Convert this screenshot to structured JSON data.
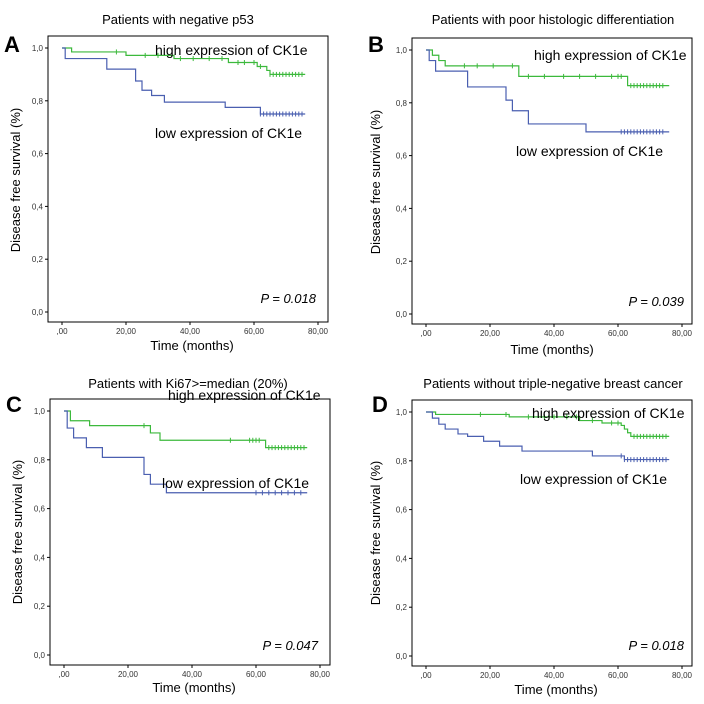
{
  "figure": {
    "panels": [
      "A",
      "B",
      "C",
      "D"
    ]
  },
  "chart_data": [
    {
      "type": "line",
      "panel_letter": "A",
      "title": "Patients with negative p53",
      "xlabel": "Time (months)",
      "ylabel": "Disease free survival (%)",
      "xlim": [
        0,
        80
      ],
      "ylim": [
        0,
        1
      ],
      "xticks": [
        ",00",
        "20,00",
        "40,00",
        "60,00",
        "80,00"
      ],
      "yticks": [
        "0,0",
        "0,2",
        "0,4",
        "0,6",
        "0,8",
        "1,0"
      ],
      "p_value": "P = 0.018",
      "series": [
        {
          "name": "high expression of CK1e",
          "color": "#3cb93c",
          "x": [
            0,
            3,
            15,
            20,
            25,
            35,
            48,
            52,
            58,
            61,
            63,
            64,
            65,
            76
          ],
          "y": [
            1.0,
            0.985,
            0.985,
            0.972,
            0.972,
            0.96,
            0.96,
            0.945,
            0.945,
            0.93,
            0.93,
            0.915,
            0.9,
            0.9
          ],
          "censor_x": [
            17,
            26,
            30,
            37,
            41,
            46,
            50,
            55,
            57,
            60,
            62,
            65,
            66,
            67,
            68,
            69,
            70,
            71,
            72,
            73,
            74,
            75
          ]
        },
        {
          "name": "low expression of CK1e",
          "color": "#4a5fb0",
          "x": [
            0,
            1,
            12,
            14,
            21,
            23,
            25,
            28,
            32,
            37,
            51,
            62,
            76
          ],
          "y": [
            1.0,
            0.96,
            0.96,
            0.92,
            0.92,
            0.875,
            0.84,
            0.82,
            0.795,
            0.795,
            0.775,
            0.75,
            0.75
          ],
          "censor_x": [
            62,
            63,
            64,
            65,
            66,
            67,
            68,
            69,
            70,
            71,
            72,
            73,
            74,
            75
          ]
        }
      ]
    },
    {
      "type": "line",
      "panel_letter": "B",
      "title": "Patients with poor histologic differentiation",
      "xlabel": "Time (months)",
      "ylabel": "Disease free survival (%)",
      "xlim": [
        0,
        80
      ],
      "ylim": [
        0,
        1
      ],
      "xticks": [
        ",00",
        "20,00",
        "40,00",
        "60,00",
        "80,00"
      ],
      "yticks": [
        "0,0",
        "0,2",
        "0,4",
        "0,6",
        "0,8",
        "1,0"
      ],
      "p_value": "P = 0.039",
      "series": [
        {
          "name": "high expression of CK1e",
          "color": "#3cb93c",
          "x": [
            0,
            2,
            4,
            6,
            27,
            29,
            62,
            63,
            76
          ],
          "y": [
            1.0,
            0.98,
            0.96,
            0.94,
            0.94,
            0.9,
            0.9,
            0.865,
            0.865
          ],
          "censor_x": [
            12,
            16,
            21,
            27,
            32,
            37,
            43,
            48,
            53,
            58,
            60,
            61,
            64,
            65,
            66,
            67,
            68,
            69,
            70,
            71,
            72,
            73,
            74
          ]
        },
        {
          "name": "low expression of CK1e",
          "color": "#4a5fb0",
          "x": [
            0,
            1,
            3,
            10,
            13,
            20,
            25,
            27,
            32,
            50,
            76
          ],
          "y": [
            1.0,
            0.96,
            0.92,
            0.92,
            0.86,
            0.86,
            0.81,
            0.77,
            0.72,
            0.69,
            0.69
          ],
          "censor_x": [
            61,
            62,
            63,
            64,
            65,
            66,
            67,
            68,
            69,
            70,
            71,
            72,
            73,
            74
          ]
        }
      ]
    },
    {
      "type": "line",
      "panel_letter": "C",
      "title": "Patients with Ki67>=median (20%)",
      "xlabel": "Time (months)",
      "ylabel": "Disease free survival (%)",
      "xlim": [
        0,
        80
      ],
      "ylim": [
        0,
        1
      ],
      "xticks": [
        ",00",
        "20,00",
        "40,00",
        "60,00",
        "80,00"
      ],
      "yticks": [
        "0,0",
        "0,2",
        "0,4",
        "0,6",
        "0,8",
        "1,0"
      ],
      "p_value": "P = 0.047",
      "series": [
        {
          "name": "high expression of CK1e",
          "color": "#3cb93c",
          "x": [
            0,
            2,
            8,
            22,
            27,
            30,
            62,
            63,
            76
          ],
          "y": [
            1.0,
            0.96,
            0.94,
            0.94,
            0.91,
            0.88,
            0.88,
            0.85,
            0.85
          ],
          "censor_x": [
            25,
            52,
            58,
            59,
            60,
            61,
            64,
            65,
            66,
            67,
            68,
            69,
            70,
            71,
            72,
            73,
            74,
            75
          ]
        },
        {
          "name": "low expression of CK1e",
          "color": "#4a5fb0",
          "x": [
            0,
            1,
            3,
            7,
            12,
            22,
            25,
            27,
            32,
            76
          ],
          "y": [
            1.0,
            0.93,
            0.89,
            0.85,
            0.81,
            0.81,
            0.74,
            0.7,
            0.665,
            0.665
          ],
          "censor_x": [
            60,
            62,
            64,
            66,
            68,
            70,
            72,
            74
          ]
        }
      ]
    },
    {
      "type": "line",
      "panel_letter": "D",
      "title": "Patients without triple-negative breast cancer",
      "xlabel": "Time (months)",
      "ylabel": "Disease free survival (%)",
      "xlim": [
        0,
        80
      ],
      "ylim": [
        0,
        1
      ],
      "xticks": [
        ",00",
        "20,00",
        "40,00",
        "60,00",
        "80,00"
      ],
      "yticks": [
        "0,0",
        "0,2",
        "0,4",
        "0,6",
        "0,8",
        "1,0"
      ],
      "p_value": "P = 0.018",
      "series": [
        {
          "name": "high expression of CK1e",
          "color": "#3cb93c",
          "x": [
            0,
            3,
            22,
            26,
            42,
            48,
            55,
            61,
            62,
            63,
            64,
            76
          ],
          "y": [
            1.0,
            0.99,
            0.99,
            0.98,
            0.98,
            0.965,
            0.955,
            0.945,
            0.93,
            0.915,
            0.9,
            0.9
          ],
          "censor_x": [
            17,
            25,
            32,
            37,
            40,
            44,
            47,
            52,
            58,
            60,
            65,
            66,
            67,
            68,
            69,
            70,
            71,
            72,
            73,
            74,
            75
          ]
        },
        {
          "name": "low expression of CK1e",
          "color": "#4a5fb0",
          "x": [
            0,
            2,
            4,
            6,
            10,
            13,
            18,
            23,
            30,
            52,
            62,
            76
          ],
          "y": [
            1.0,
            0.975,
            0.95,
            0.93,
            0.91,
            0.9,
            0.88,
            0.86,
            0.84,
            0.82,
            0.805,
            0.805
          ],
          "censor_x": [
            61,
            62,
            63,
            64,
            65,
            66,
            67,
            68,
            69,
            70,
            71,
            72,
            73,
            74,
            75
          ]
        }
      ]
    }
  ]
}
